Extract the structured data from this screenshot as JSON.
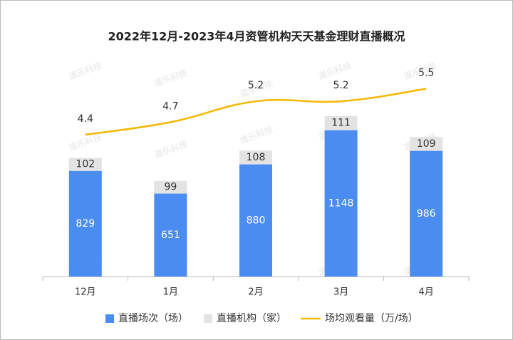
{
  "chart_data": {
    "type": "bar",
    "stacked": true,
    "title": "2022年12月-2023年4月资管机构天天基金理财直播概况",
    "watermark": "道乐科技",
    "categories": [
      "12月",
      "1月",
      "2月",
      "3月",
      "4月"
    ],
    "series": [
      {
        "name": "直播场次（场）",
        "color": "#4a8cf0",
        "values": [
          829,
          651,
          880,
          1148,
          986
        ]
      },
      {
        "name": "直播机构（家）",
        "color": "#e3e3e3",
        "values": [
          102,
          99,
          108,
          111,
          109
        ]
      },
      {
        "name": "场均观看量（万/场）",
        "type": "line",
        "axis": "y2",
        "color": "#f5b800",
        "values": [
          4.4,
          4.7,
          5.2,
          5.2,
          5.5
        ]
      }
    ],
    "ylim": [
      0,
      1800
    ],
    "y2lim": [
      1,
      6.5
    ],
    "grid": false,
    "legend": "bottom"
  }
}
